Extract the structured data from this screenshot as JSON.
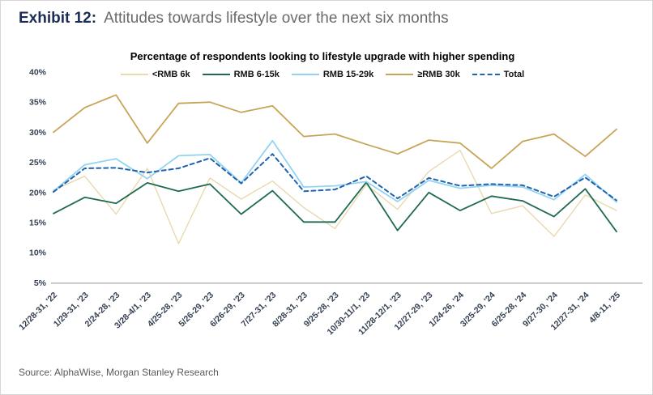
{
  "exhibit": {
    "label": "Exhibit 12:",
    "title": "Attitudes towards lifestyle over the next six months"
  },
  "source": "Source: AlphaWise, Morgan Stanley Research",
  "colors": {
    "exhibit_label": "#1c2b56",
    "exhibit_title": "#6a6a6a",
    "axis_text": "#333f50",
    "axis_line": "#a8a8a8",
    "source_text": "#595959"
  },
  "chart_data": {
    "type": "line",
    "title": "Percentage of respondents looking to lifestyle upgrade with higher spending",
    "xlabel": "",
    "ylabel": "",
    "ylim": [
      5,
      40
    ],
    "grid": false,
    "legend_position": "top",
    "yticks": [
      "40%",
      "35%",
      "30%",
      "25%",
      "20%",
      "15%",
      "10%",
      "5%"
    ],
    "ytick_values": [
      40,
      35,
      30,
      25,
      20,
      15,
      10,
      5
    ],
    "categories": [
      "12/28-31, '22",
      "1/29-31, '23",
      "2/24-28, '23",
      "3/28-4/1, '23",
      "4/25-28, '23",
      "5/26-29, '23",
      "6/26-29, '23",
      "7/27-31, '23",
      "8/28-31, '23",
      "9/25-28, '23",
      "10/30-11/1, '23",
      "11/28-12/1, '23",
      "12/27-29, '23",
      "1/24-26, '24",
      "3/25-29, '24",
      "6/25-28, '24",
      "9/27-30, '24",
      "12/27-31, '24",
      "4/8-11, '25"
    ],
    "series": [
      {
        "name": "<RMB 6k",
        "color": "#e9d9ae",
        "dash": null,
        "width": 1.4,
        "values": [
          20.4,
          22.7,
          16.4,
          24.0,
          11.5,
          22.4,
          18.9,
          21.9,
          17.5,
          14.0,
          21.3,
          17.2,
          23.5,
          27.0,
          16.5,
          17.8,
          12.7,
          19.6,
          17.0
        ]
      },
      {
        "name": "RMB 6-15k",
        "color": "#216a52",
        "dash": null,
        "width": 1.8,
        "values": [
          16.5,
          19.2,
          18.2,
          21.6,
          20.2,
          21.4,
          16.4,
          20.3,
          15.1,
          15.1,
          21.7,
          13.7,
          20.0,
          17.0,
          19.4,
          18.6,
          16.0,
          20.6,
          13.5
        ]
      },
      {
        "name": "RMB 15-29k",
        "color": "#92d4f2",
        "dash": null,
        "width": 1.8,
        "values": [
          20.2,
          24.6,
          25.6,
          22.3,
          26.1,
          26.3,
          21.6,
          28.6,
          20.9,
          21.1,
          21.8,
          18.5,
          22.0,
          20.7,
          21.2,
          20.9,
          18.8,
          23.0,
          18.4
        ]
      },
      {
        "name": "≥RMB 30k",
        "color": "#c7a558",
        "dash": null,
        "width": 1.8,
        "values": [
          30.0,
          34.1,
          36.2,
          28.2,
          34.8,
          35.0,
          33.3,
          34.4,
          29.3,
          29.7,
          28.0,
          26.4,
          28.7,
          28.2,
          24.0,
          28.5,
          29.7,
          26.0,
          30.5
        ]
      },
      {
        "name": "Total",
        "color": "#2063b0",
        "dash": "5 4",
        "width": 2,
        "values": [
          20.1,
          24.0,
          24.1,
          23.3,
          24.0,
          25.7,
          21.5,
          26.4,
          20.2,
          20.5,
          22.7,
          19.0,
          22.4,
          21.1,
          21.4,
          21.2,
          19.3,
          22.5,
          18.7
        ]
      }
    ]
  }
}
